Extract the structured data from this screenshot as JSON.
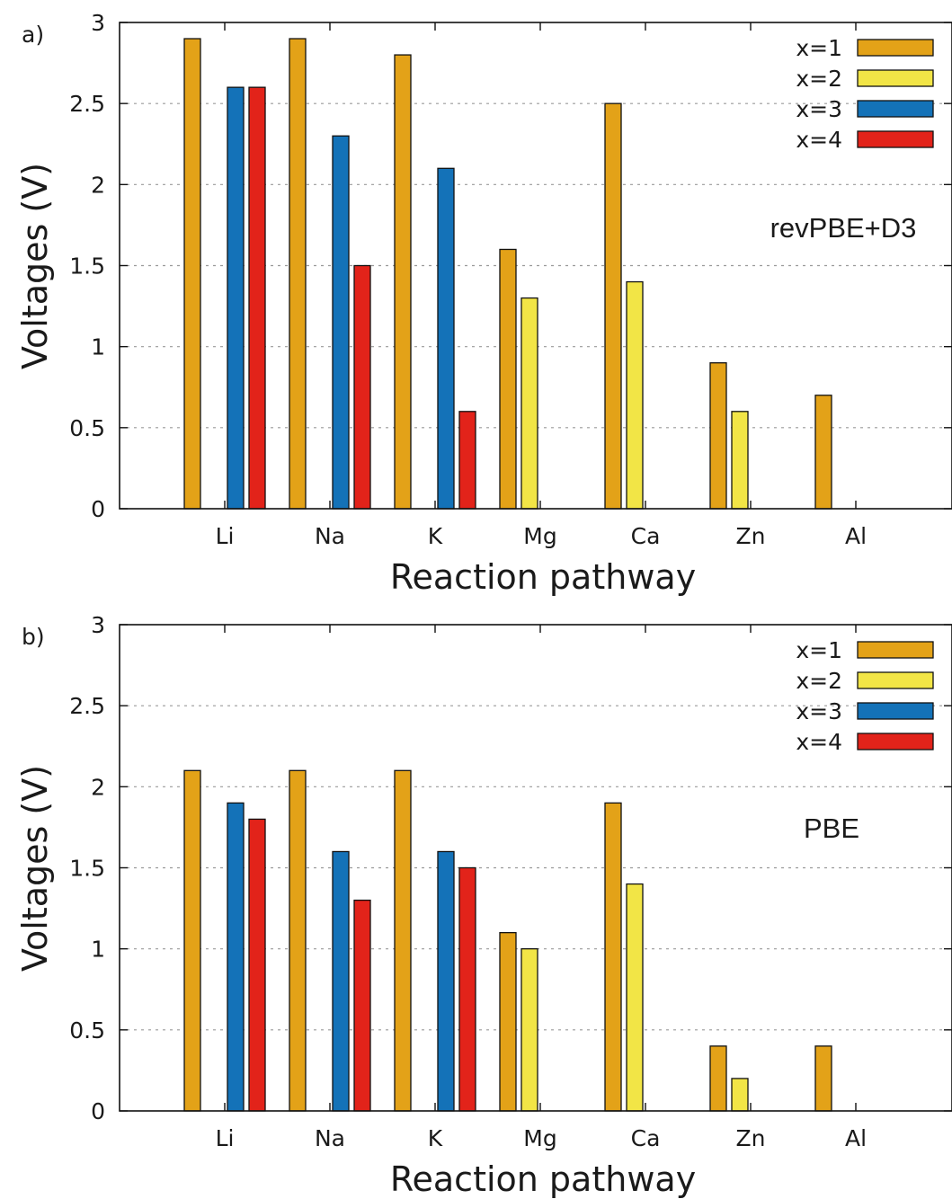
{
  "chart_data": [
    {
      "type": "bar",
      "panel_label": "a)",
      "method": "revPBE+D3",
      "xlabel": "Reaction pathway",
      "ylabel": "Voltages (V)",
      "ylim": [
        0,
        3
      ],
      "yticks": [
        "0",
        "0.5",
        "1",
        "1.5",
        "2",
        "2.5",
        "3"
      ],
      "grid": "horizontal dotted",
      "legend_position": "top-right",
      "categories": [
        "Li",
        "Na",
        "K",
        "Mg",
        "Ca",
        "Zn",
        "Al"
      ],
      "series": [
        {
          "name": "x=1",
          "color": "#E3A218",
          "values": [
            2.9,
            2.9,
            2.8,
            1.6,
            2.5,
            0.9,
            0.7
          ]
        },
        {
          "name": "x=2",
          "color": "#F2E546",
          "values": [
            null,
            null,
            null,
            1.3,
            1.4,
            0.6,
            null
          ]
        },
        {
          "name": "x=3",
          "color": "#1472B8",
          "values": [
            2.6,
            2.3,
            2.1,
            null,
            null,
            null,
            null
          ]
        },
        {
          "name": "x=4",
          "color": "#E2231A",
          "values": [
            2.6,
            1.5,
            0.6,
            null,
            null,
            null,
            null
          ]
        }
      ]
    },
    {
      "type": "bar",
      "panel_label": "b)",
      "method": "PBE",
      "xlabel": "Reaction pathway",
      "ylabel": "Voltages (V)",
      "ylim": [
        0,
        3
      ],
      "yticks": [
        "0",
        "0.5",
        "1",
        "1.5",
        "2",
        "2.5",
        "3"
      ],
      "grid": "horizontal dotted",
      "legend_position": "top-right",
      "categories": [
        "Li",
        "Na",
        "K",
        "Mg",
        "Ca",
        "Zn",
        "Al"
      ],
      "series": [
        {
          "name": "x=1",
          "color": "#E3A218",
          "values": [
            2.1,
            2.1,
            2.1,
            1.1,
            1.9,
            0.4,
            0.4
          ]
        },
        {
          "name": "x=2",
          "color": "#F2E546",
          "values": [
            null,
            null,
            null,
            1.0,
            1.4,
            0.2,
            null
          ]
        },
        {
          "name": "x=3",
          "color": "#1472B8",
          "values": [
            1.9,
            1.6,
            1.6,
            null,
            null,
            null,
            null
          ]
        },
        {
          "name": "x=4",
          "color": "#E2231A",
          "values": [
            1.8,
            1.3,
            1.5,
            null,
            null,
            null,
            null
          ]
        }
      ]
    }
  ]
}
